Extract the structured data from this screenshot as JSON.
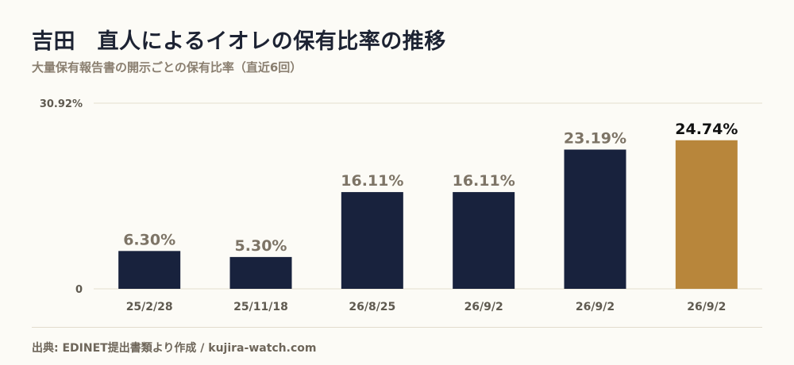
{
  "header": {
    "title": "吉田　直人によるイオレの保有比率の推移",
    "subtitle": "大量保有報告書の開示ごとの保有比率（直近6回）"
  },
  "footer": {
    "source": "出典: EDINET提出書類より作成 / kujira-watch.com"
  },
  "colors": {
    "bar": "#18223d",
    "highlight": "#b8863b",
    "grid": "#e4dfcf",
    "label": "#7d7466",
    "tick": "#5f5a50"
  },
  "chart_data": {
    "type": "bar",
    "categories": [
      "25/2/28",
      "25/11/18",
      "26/8/25",
      "26/9/2",
      "26/9/2",
      "26/9/2"
    ],
    "values": [
      6.3,
      5.3,
      16.11,
      16.11,
      23.19,
      24.74
    ],
    "value_labels": [
      "6.30%",
      "5.30%",
      "16.11%",
      "16.11%",
      "23.19%",
      "24.74%"
    ],
    "ylim": [
      0,
      30.92
    ],
    "ytick_labels": [
      "0",
      "30.92%"
    ],
    "highlight_index": 5,
    "title": "",
    "xlabel": "",
    "ylabel": ""
  }
}
